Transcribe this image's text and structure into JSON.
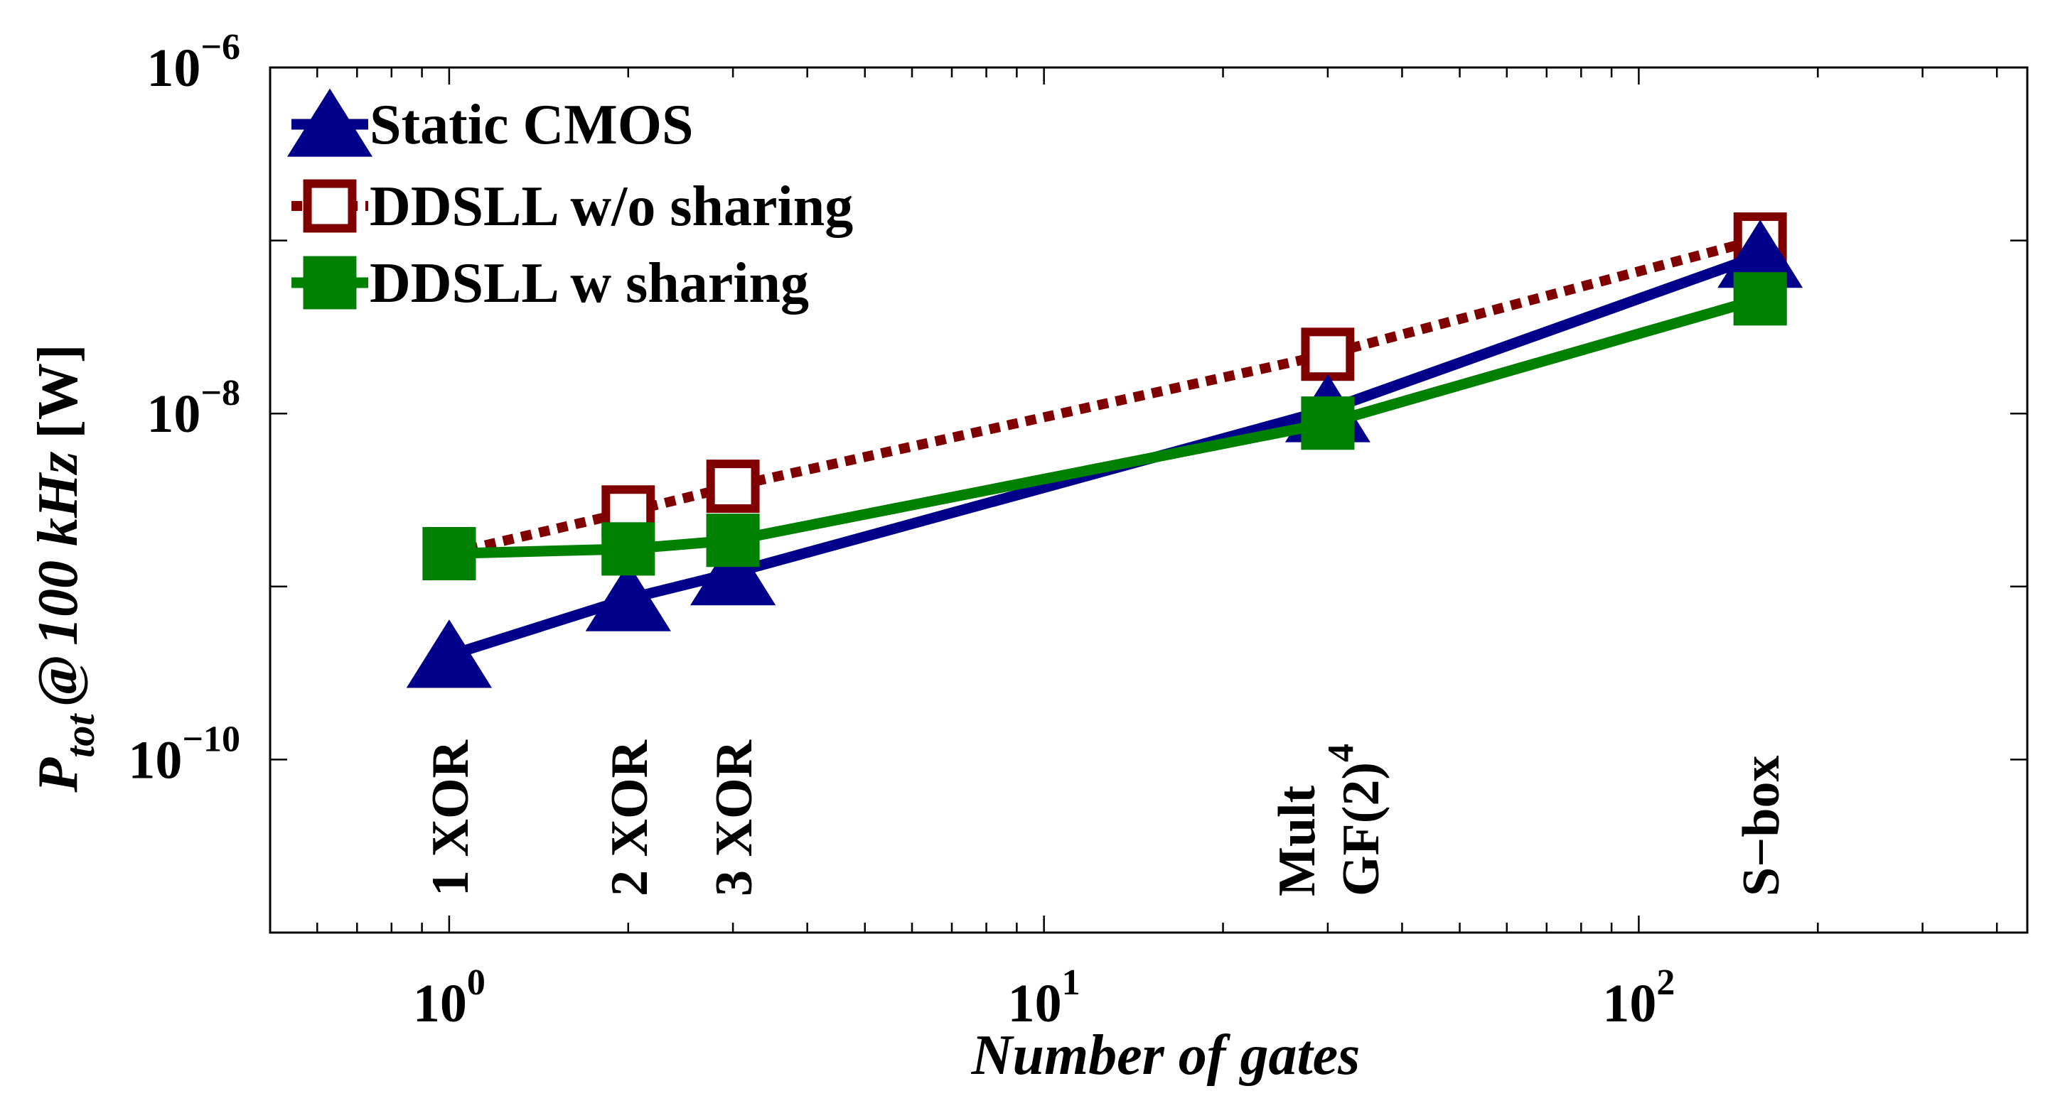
{
  "chart_data": {
    "type": "line",
    "title": "",
    "xlabel": "Number of gates",
    "ylabel_main": "P",
    "ylabel_sub": "tot",
    "ylabel_at": "@",
    "ylabel_freq": "100 kHz",
    "ylabel_unit": "[W]",
    "x_scale": "log",
    "y_scale": "log",
    "xlim": [
      0.5,
      450
    ],
    "ylim": [
      1e-11,
      1e-06
    ],
    "x_ticks": [
      {
        "value": 1,
        "base": "10",
        "exp": "0"
      },
      {
        "value": 10,
        "base": "10",
        "exp": "1"
      },
      {
        "value": 100,
        "base": "10",
        "exp": "2"
      }
    ],
    "y_ticks": [
      {
        "value": 1e-10,
        "base": "10",
        "exp": "−10"
      },
      {
        "value": 1e-08,
        "base": "10",
        "exp": "−8"
      },
      {
        "value": 1e-06,
        "base": "10",
        "exp": "−6"
      }
    ],
    "x": [
      1,
      2,
      3,
      30,
      160
    ],
    "series": [
      {
        "name": "Static CMOS",
        "color": "#00008b",
        "marker": "triangle",
        "style": "solid",
        "values": [
          4e-10,
          8.5e-10,
          1.2e-09,
          1.05e-08,
          8.2e-08
        ]
      },
      {
        "name": "DDSLL w/o sharing",
        "color": "#800000",
        "marker": "square-open",
        "style": "dotted",
        "values": [
          1.55e-09,
          2.7e-09,
          3.8e-09,
          2.2e-08,
          1.02e-07
        ]
      },
      {
        "name": "DDSLL w sharing",
        "color": "#008000",
        "marker": "square",
        "style": "solid",
        "values": [
          1.55e-09,
          1.65e-09,
          1.85e-09,
          8.8e-09,
          4.6e-08
        ]
      }
    ],
    "annotations": [
      {
        "x": 1,
        "lines": [
          "1 XOR"
        ]
      },
      {
        "x": 2,
        "lines": [
          "2 XOR"
        ]
      },
      {
        "x": 3,
        "lines": [
          "3 XOR"
        ]
      },
      {
        "x": 30,
        "lines": [
          "Mult",
          "GF(2)"
        ],
        "superscript": "4"
      },
      {
        "x": 160,
        "lines": [
          "S−box"
        ]
      }
    ],
    "legend_position": "top-left",
    "grid": false
  }
}
